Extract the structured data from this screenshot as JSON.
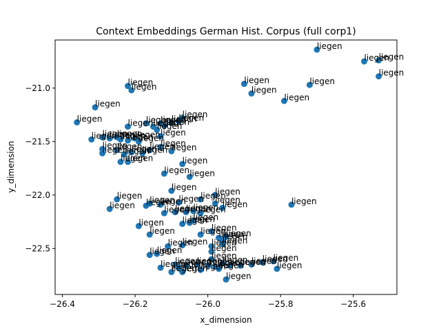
{
  "chart_data": {
    "type": "scatter",
    "title": "Context Embeddings German Hist. Corpus (full corp1)",
    "xlabel": "x_dimension",
    "ylabel": "y_dimension",
    "xlim": [
      -26.42,
      -25.48
    ],
    "ylim": [
      -22.93,
      -20.55
    ],
    "xticks": [
      -26.4,
      -26.2,
      -26.0,
      -25.8,
      -25.6
    ],
    "xtick_labels": [
      "−26.4",
      "−26.2",
      "−26.0",
      "−25.8",
      "−25.6"
    ],
    "yticks": [
      -21.0,
      -21.5,
      -22.0,
      -22.5
    ],
    "ytick_labels": [
      "−21.0",
      "−21.5",
      "−22.0",
      "−22.5"
    ],
    "grid": false,
    "marker_color": "#1f77b4",
    "point_label": "liegen",
    "points": [
      {
        "x": -25.7,
        "y": -20.64
      },
      {
        "x": -25.57,
        "y": -20.75
      },
      {
        "x": -25.53,
        "y": -20.74
      },
      {
        "x": -25.53,
        "y": -20.89
      },
      {
        "x": -25.72,
        "y": -20.97
      },
      {
        "x": -25.9,
        "y": -20.96
      },
      {
        "x": -25.88,
        "y": -21.05
      },
      {
        "x": -25.79,
        "y": -21.12
      },
      {
        "x": -26.22,
        "y": -20.98
      },
      {
        "x": -26.21,
        "y": -21.02
      },
      {
        "x": -26.31,
        "y": -21.18
      },
      {
        "x": -26.36,
        "y": -21.32
      },
      {
        "x": -26.22,
        "y": -21.36
      },
      {
        "x": -26.17,
        "y": -21.33
      },
      {
        "x": -26.15,
        "y": -21.36
      },
      {
        "x": -26.14,
        "y": -21.39
      },
      {
        "x": -26.13,
        "y": -21.33
      },
      {
        "x": -26.12,
        "y": -21.35
      },
      {
        "x": -26.1,
        "y": -21.32
      },
      {
        "x": -26.08,
        "y": -21.31
      },
      {
        "x": -26.07,
        "y": -21.28
      },
      {
        "x": -26.13,
        "y": -21.45
      },
      {
        "x": -26.32,
        "y": -21.48
      },
      {
        "x": -26.29,
        "y": -21.46
      },
      {
        "x": -26.27,
        "y": -21.47
      },
      {
        "x": -26.25,
        "y": -21.46
      },
      {
        "x": -26.24,
        "y": -21.48
      },
      {
        "x": -26.22,
        "y": -21.49
      },
      {
        "x": -26.2,
        "y": -21.47
      },
      {
        "x": -26.19,
        "y": -21.5
      },
      {
        "x": -26.29,
        "y": -21.57
      },
      {
        "x": -26.29,
        "y": -21.61
      },
      {
        "x": -26.25,
        "y": -21.58
      },
      {
        "x": -26.23,
        "y": -21.62
      },
      {
        "x": -26.21,
        "y": -21.6
      },
      {
        "x": -26.18,
        "y": -21.61
      },
      {
        "x": -26.16,
        "y": -21.58
      },
      {
        "x": -26.13,
        "y": -21.55
      },
      {
        "x": -26.1,
        "y": -21.59
      },
      {
        "x": -26.24,
        "y": -21.69
      },
      {
        "x": -26.22,
        "y": -21.69
      },
      {
        "x": -26.07,
        "y": -21.71
      },
      {
        "x": -26.12,
        "y": -21.8
      },
      {
        "x": -26.05,
        "y": -21.83
      },
      {
        "x": -26.1,
        "y": -21.96
      },
      {
        "x": -25.98,
        "y": -22.0
      },
      {
        "x": -26.25,
        "y": -22.04
      },
      {
        "x": -26.27,
        "y": -22.13
      },
      {
        "x": -26.17,
        "y": -22.1
      },
      {
        "x": -26.16,
        "y": -22.08
      },
      {
        "x": -26.13,
        "y": -22.09
      },
      {
        "x": -26.08,
        "y": -22.07
      },
      {
        "x": -26.02,
        "y": -22.04
      },
      {
        "x": -25.98,
        "y": -22.08
      },
      {
        "x": -25.96,
        "y": -22.12
      },
      {
        "x": -26.12,
        "y": -22.17
      },
      {
        "x": -26.09,
        "y": -22.16
      },
      {
        "x": -26.06,
        "y": -22.16
      },
      {
        "x": -26.04,
        "y": -22.15
      },
      {
        "x": -26.02,
        "y": -22.17
      },
      {
        "x": -25.77,
        "y": -22.09
      },
      {
        "x": -26.19,
        "y": -22.29
      },
      {
        "x": -26.07,
        "y": -22.27
      },
      {
        "x": -26.05,
        "y": -22.26
      },
      {
        "x": -26.04,
        "y": -22.24
      },
      {
        "x": -26.16,
        "y": -22.37
      },
      {
        "x": -26.02,
        "y": -22.37
      },
      {
        "x": -25.99,
        "y": -22.34
      },
      {
        "x": -25.97,
        "y": -22.4
      },
      {
        "x": -25.96,
        "y": -22.42
      },
      {
        "x": -25.95,
        "y": -22.39
      },
      {
        "x": -26.11,
        "y": -22.48
      },
      {
        "x": -26.07,
        "y": -22.47
      },
      {
        "x": -25.99,
        "y": -22.48
      },
      {
        "x": -25.96,
        "y": -22.46
      },
      {
        "x": -26.16,
        "y": -22.56
      },
      {
        "x": -26.14,
        "y": -22.55
      },
      {
        "x": -25.99,
        "y": -22.53
      },
      {
        "x": -25.99,
        "y": -22.6
      },
      {
        "x": -26.13,
        "y": -22.68
      },
      {
        "x": -26.09,
        "y": -22.65
      },
      {
        "x": -26.08,
        "y": -22.68
      },
      {
        "x": -26.06,
        "y": -22.66
      },
      {
        "x": -26.03,
        "y": -22.65
      },
      {
        "x": -26.0,
        "y": -22.66
      },
      {
        "x": -25.98,
        "y": -22.67
      },
      {
        "x": -25.96,
        "y": -22.64
      },
      {
        "x": -25.94,
        "y": -22.66
      },
      {
        "x": -25.91,
        "y": -22.66
      },
      {
        "x": -25.88,
        "y": -22.65
      },
      {
        "x": -25.85,
        "y": -22.63
      },
      {
        "x": -25.82,
        "y": -22.62
      },
      {
        "x": -25.81,
        "y": -22.69
      },
      {
        "x": -26.1,
        "y": -22.72
      },
      {
        "x": -26.07,
        "y": -22.72
      },
      {
        "x": -26.02,
        "y": -22.7
      },
      {
        "x": -25.97,
        "y": -22.69
      },
      {
        "x": -25.95,
        "y": -22.79
      }
    ]
  }
}
